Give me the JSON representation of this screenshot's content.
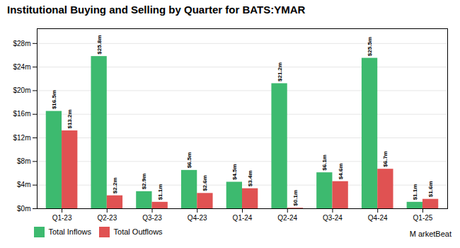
{
  "chart_data": {
    "type": "bar",
    "title": "Institutional Buying and Selling by Quarter for BATS:YMAR",
    "categories": [
      "Q1-23",
      "Q2-23",
      "Q3-23",
      "Q4-23",
      "Q1-24",
      "Q2-24",
      "Q3-24",
      "Q4-24",
      "Q1-25"
    ],
    "series": [
      {
        "name": "Total Inflows",
        "color": "#3dba6f",
        "values": [
          16.5,
          25.8,
          2.9,
          6.5,
          4.5,
          21.2,
          6.1,
          25.5,
          1.1
        ],
        "value_labels": [
          "$16.5m",
          "$25.8m",
          "$2.9m",
          "$6.5m",
          "$4.5m",
          "$21.2m",
          "$6.1m",
          "$25.5m",
          "$1.1m"
        ]
      },
      {
        "name": "Total Outflows",
        "color": "#e05252",
        "values": [
          13.2,
          2.2,
          1.1,
          2.6,
          3.4,
          0.1,
          4.6,
          6.7,
          1.6
        ],
        "value_labels": [
          "$13.2m",
          "$2.2m",
          "$1.1m",
          "$2.6m",
          "$3.4m",
          "$0.1m",
          "$4.6m",
          "$6.7m",
          "$1.6m"
        ]
      }
    ],
    "ylim": [
      0,
      30.5
    ],
    "yticks": [
      {
        "value": 0,
        "label": "$0m"
      },
      {
        "value": 4,
        "label": "$4m"
      },
      {
        "value": 8,
        "label": "$8m"
      },
      {
        "value": 12,
        "label": "$12m"
      },
      {
        "value": 16,
        "label": "$16m"
      },
      {
        "value": 20,
        "label": "$20m"
      },
      {
        "value": 24,
        "label": "$24m"
      },
      {
        "value": 28,
        "label": "$28m"
      }
    ],
    "grid": true,
    "data_labels": true,
    "legend": "bottom",
    "annotations": [
      "M arketBeat"
    ]
  }
}
